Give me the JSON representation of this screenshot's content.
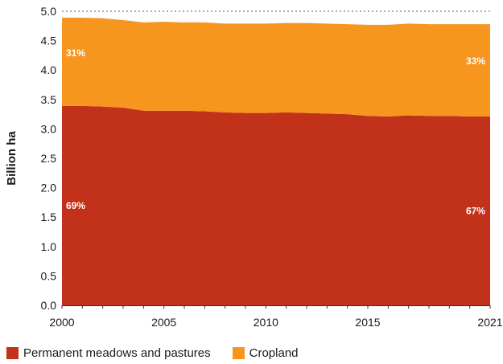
{
  "chart_data": {
    "type": "area",
    "stacked": true,
    "title": "",
    "xlabel": "",
    "ylabel": "Billion ha",
    "x": [
      2000,
      2001,
      2002,
      2003,
      2004,
      2005,
      2006,
      2007,
      2008,
      2009,
      2010,
      2011,
      2012,
      2013,
      2014,
      2015,
      2016,
      2017,
      2018,
      2019,
      2020,
      2021
    ],
    "xticks": [
      "2000",
      "2005",
      "2010",
      "2015",
      "2021"
    ],
    "yticks": [
      "0.0",
      "0.5",
      "1.0",
      "1.5",
      "2.0",
      "2.5",
      "3.0",
      "3.5",
      "4.0",
      "4.5",
      "5.0"
    ],
    "xlim": [
      2000,
      2021
    ],
    "ylim": [
      0,
      5.0
    ],
    "series": [
      {
        "name": "Permanent meadows and pastures",
        "color": "#c2311a",
        "values": [
          3.39,
          3.39,
          3.38,
          3.36,
          3.31,
          3.31,
          3.31,
          3.3,
          3.28,
          3.27,
          3.27,
          3.28,
          3.27,
          3.26,
          3.25,
          3.22,
          3.21,
          3.23,
          3.22,
          3.22,
          3.21,
          3.21
        ],
        "share_labels": [
          {
            "x": 2000,
            "label": "69%"
          },
          {
            "x": 2021,
            "label": "67%"
          }
        ]
      },
      {
        "name": "Cropland",
        "color": "#f6961e",
        "values": [
          1.5,
          1.5,
          1.5,
          1.49,
          1.5,
          1.51,
          1.5,
          1.51,
          1.51,
          1.52,
          1.52,
          1.52,
          1.53,
          1.53,
          1.53,
          1.55,
          1.56,
          1.56,
          1.56,
          1.56,
          1.57,
          1.57
        ],
        "share_labels": [
          {
            "x": 2000,
            "label": "31%"
          },
          {
            "x": 2021,
            "label": "33%"
          }
        ]
      }
    ],
    "reference_line": {
      "y": 5.0,
      "style": "dotted"
    },
    "grid": false,
    "legend": "bottom-left"
  }
}
